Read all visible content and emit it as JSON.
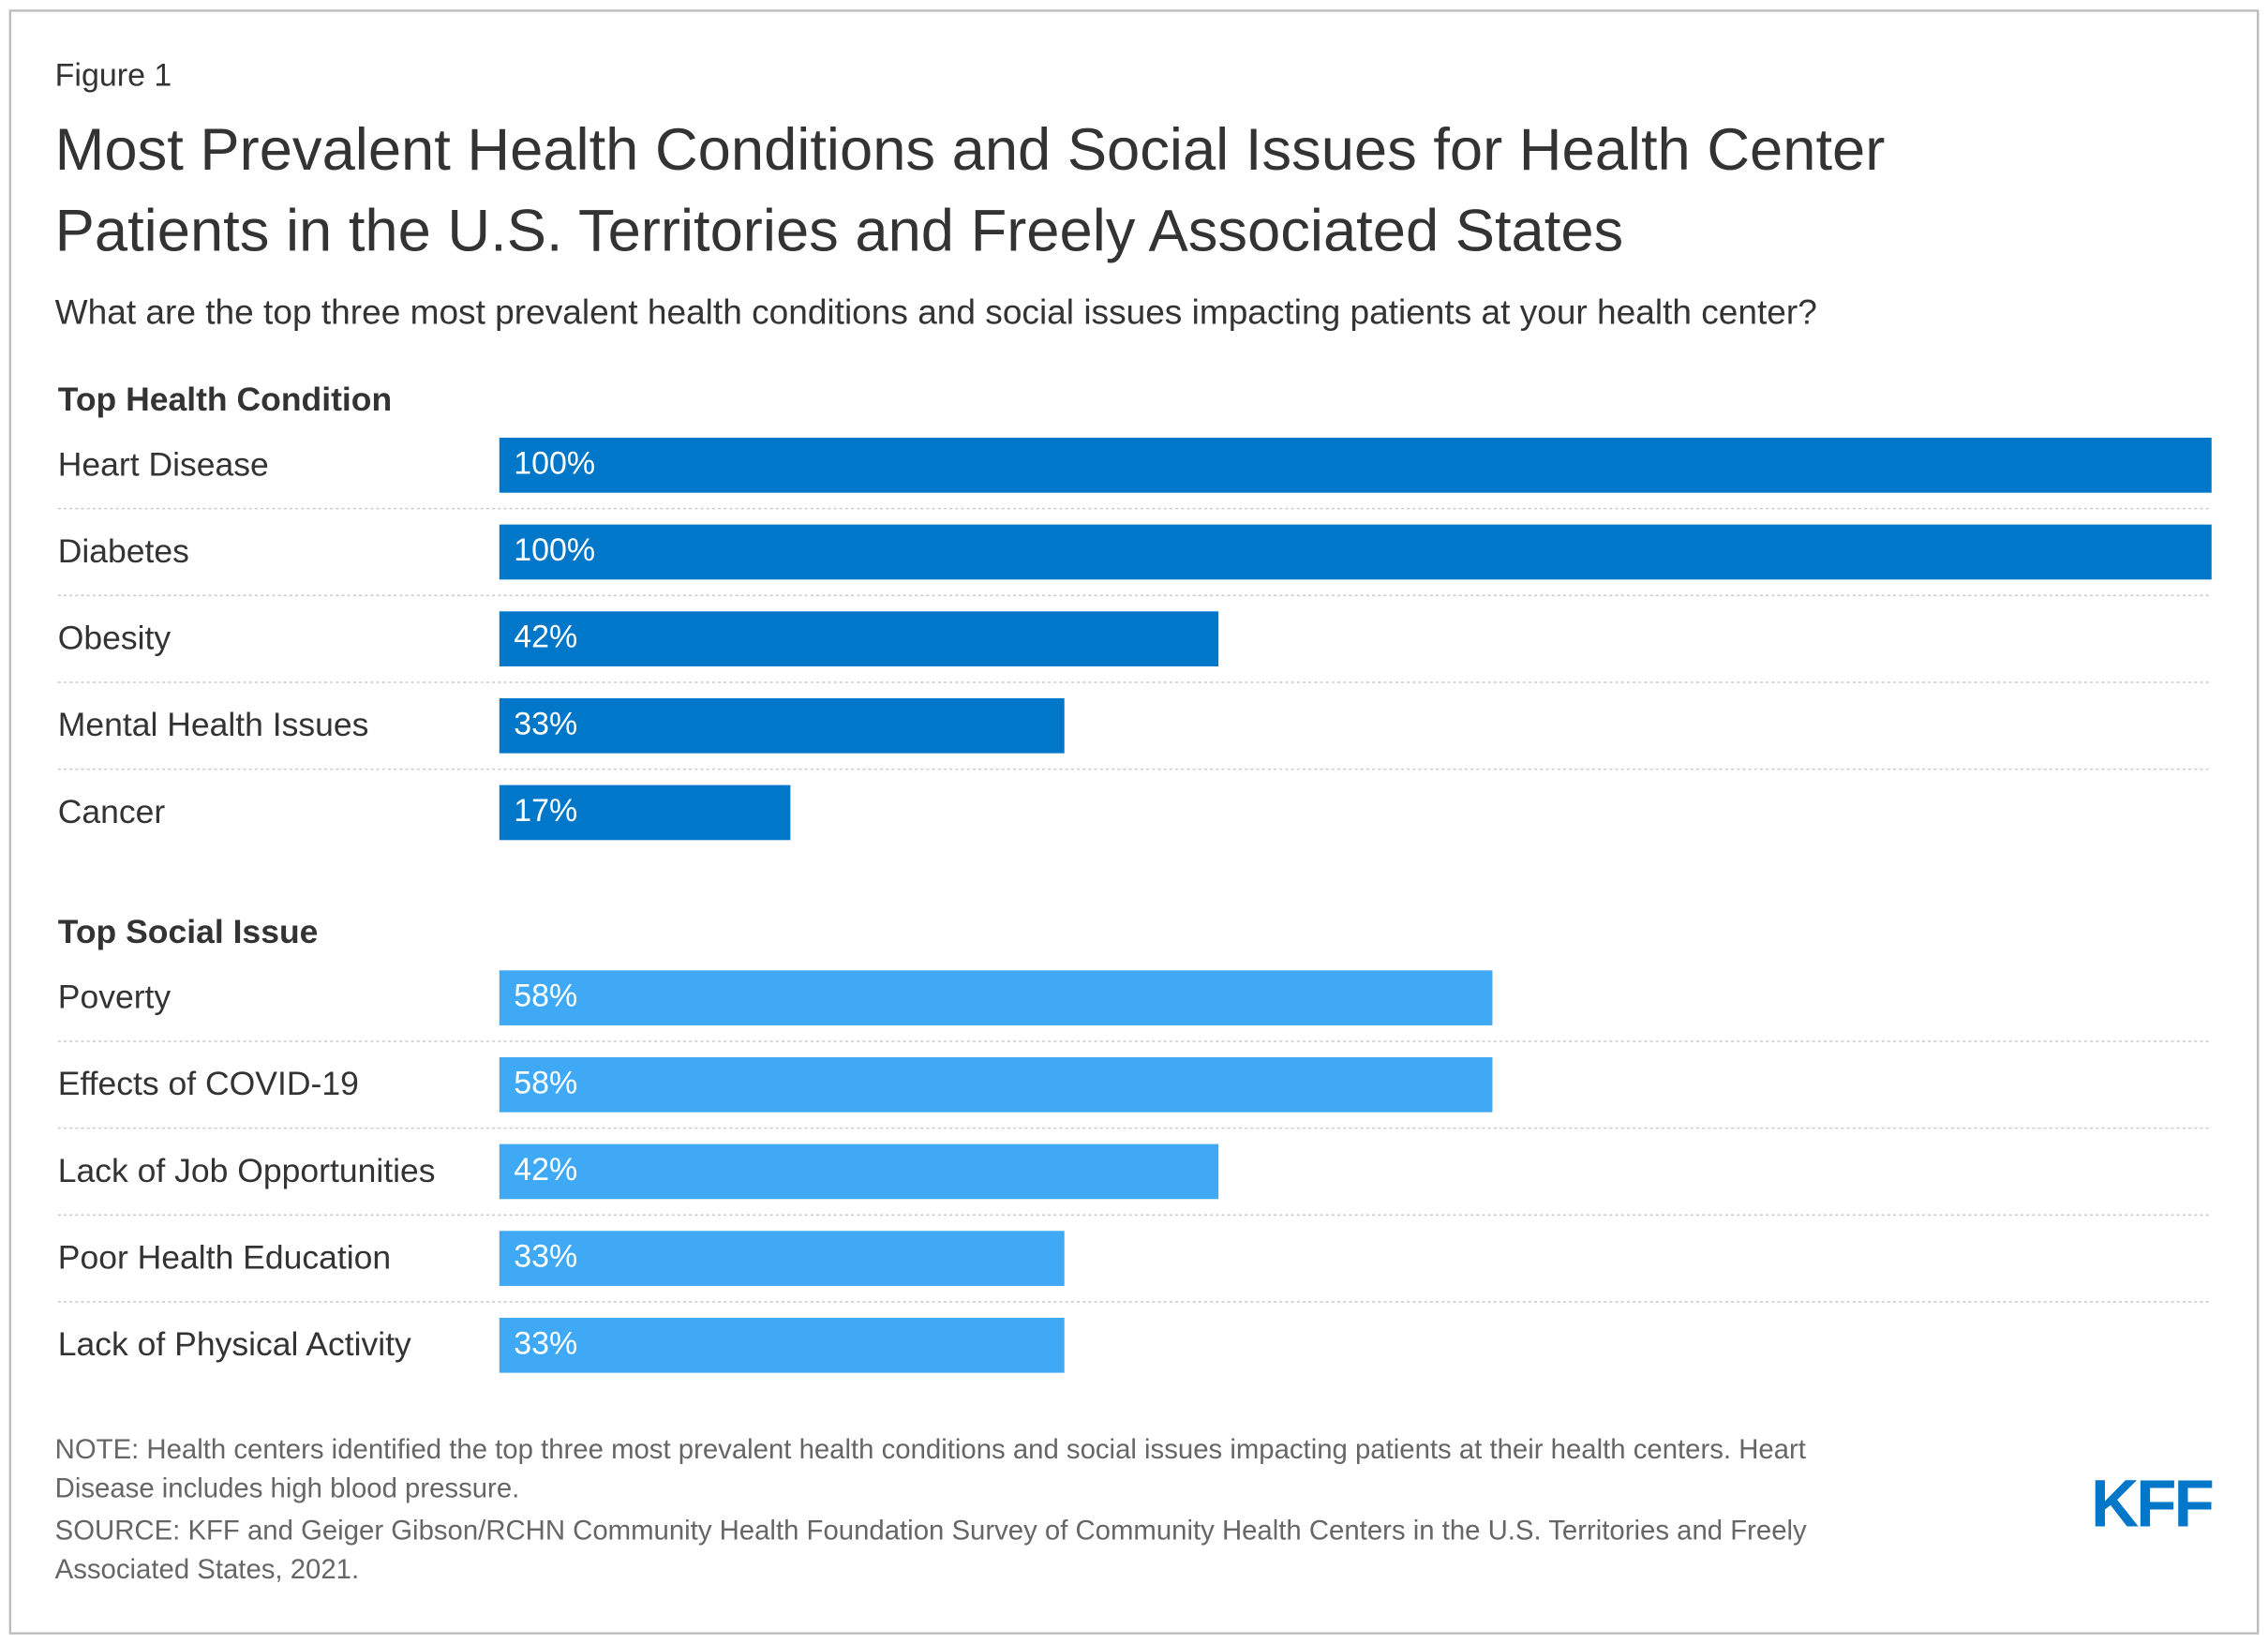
{
  "figure_label": "Figure 1",
  "title_lines": [
    "Most Prevalent Health Conditions and Social Issues for Health Center",
    "Patients in the U.S. Territories and Freely Associated States"
  ],
  "subtitle": "What are the top three most prevalent health conditions and social issues impacting patients at your health center?",
  "chart_data": [
    {
      "type": "bar",
      "group_title": "Top Health Condition",
      "categories": [
        "Heart Disease",
        "Diabetes",
        "Obesity",
        "Mental Health Issues",
        "Cancer"
      ],
      "values": [
        100,
        100,
        42,
        33,
        17
      ],
      "value_labels": [
        "100%",
        "100%",
        "42%",
        "33%",
        "17%"
      ],
      "color": "#0077c8",
      "xlim": [
        0,
        100
      ]
    },
    {
      "type": "bar",
      "group_title": "Top Social Issue",
      "categories": [
        "Poverty",
        "Effects of COVID-19",
        "Lack of Job Opportunities",
        "Poor Health Education",
        "Lack of Physical Activity"
      ],
      "values": [
        58,
        58,
        42,
        33,
        33
      ],
      "value_labels": [
        "58%",
        "58%",
        "42%",
        "33%",
        "33%"
      ],
      "color": "#3fa9f5",
      "xlim": [
        0,
        100
      ]
    }
  ],
  "note_lines": [
    "NOTE: Health centers identified the top three most prevalent health conditions and social issues impacting patients at their health centers. Heart",
    "Disease includes high blood pressure."
  ],
  "source_lines": [
    "SOURCE: KFF and Geiger Gibson/RCHN Community Health Foundation Survey of Community Health Centers in the U.S. Territories and Freely",
    "Associated States, 2021."
  ],
  "logo": "KFF"
}
